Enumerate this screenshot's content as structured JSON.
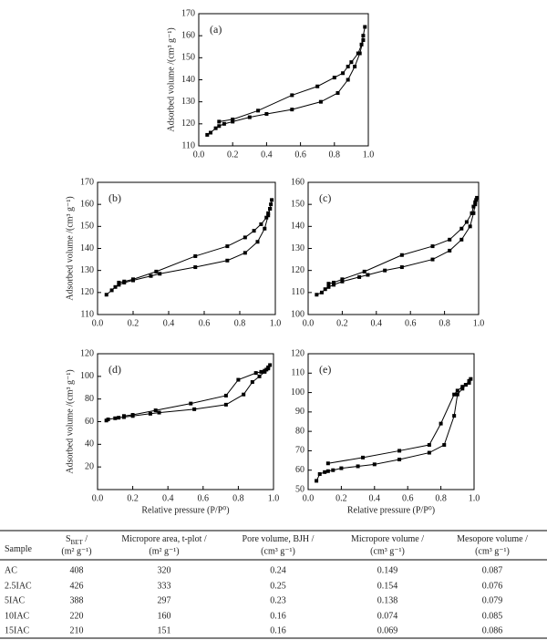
{
  "chart_data": [
    {
      "type": "line",
      "annotation": "(a)",
      "ylabel": "Adsorbed volume /(cm³ g⁻¹)",
      "marker": "square",
      "xlim": [
        0,
        1
      ],
      "xticks": [
        {
          "value": 0,
          "label": "0.0"
        },
        {
          "value": 0.2,
          "label": "0.2"
        },
        {
          "value": 0.4,
          "label": "0.4"
        },
        {
          "value": 0.6,
          "label": "0.6"
        },
        {
          "value": 0.8,
          "label": "0.8"
        },
        {
          "value": 1,
          "label": "1.0"
        }
      ],
      "ylim": [
        110,
        170
      ],
      "yticks": [
        110,
        120,
        130,
        140,
        150,
        160,
        170
      ],
      "series": [
        {
          "color": "#000000",
          "x": [
            0.05,
            0.07,
            0.1,
            0.12,
            0.15,
            0.2,
            0.3,
            0.4,
            0.55,
            0.72,
            0.82,
            0.88,
            0.92,
            0.95,
            0.97
          ],
          "values": [
            115,
            116,
            118,
            119,
            120,
            121,
            123,
            124.5,
            126.5,
            130,
            134,
            140,
            146,
            152,
            158
          ]
        },
        {
          "color": "#000000",
          "x": [
            0.98,
            0.97,
            0.96,
            0.94,
            0.9,
            0.88,
            0.85,
            0.8,
            0.7,
            0.55,
            0.35,
            0.2,
            0.12
          ],
          "values": [
            164,
            160,
            156,
            152,
            148,
            146,
            143,
            141,
            137,
            133,
            126,
            122,
            121
          ]
        }
      ]
    },
    {
      "type": "line",
      "annotation": "(b)",
      "ylabel": "Adsorbed volume /(cm³ g⁻¹)",
      "marker": "square",
      "xlim": [
        0,
        1
      ],
      "xticks": [
        {
          "value": 0,
          "label": "0.0"
        },
        {
          "value": 0.2,
          "label": "0.2"
        },
        {
          "value": 0.4,
          "label": "0.4"
        },
        {
          "value": 0.6,
          "label": "0.6"
        },
        {
          "value": 0.8,
          "label": "0.8"
        },
        {
          "value": 1,
          "label": "1.0"
        }
      ],
      "ylim": [
        110,
        170
      ],
      "yticks": [
        110,
        120,
        130,
        140,
        150,
        160,
        170
      ],
      "series": [
        {
          "color": "#000000",
          "x": [
            0.05,
            0.08,
            0.1,
            0.12,
            0.15,
            0.2,
            0.3,
            0.35,
            0.55,
            0.73,
            0.83,
            0.9,
            0.94,
            0.96,
            0.97
          ],
          "values": [
            119,
            121,
            122.5,
            123.5,
            124.5,
            125.5,
            127.5,
            128.5,
            131.5,
            134.5,
            138,
            143,
            149,
            155,
            158
          ]
        },
        {
          "color": "#000000",
          "x": [
            0.98,
            0.975,
            0.97,
            0.96,
            0.95,
            0.92,
            0.88,
            0.83,
            0.73,
            0.55,
            0.33,
            0.2,
            0.15,
            0.12
          ],
          "values": [
            162,
            160,
            158,
            156,
            154,
            151,
            148,
            145,
            141,
            136.5,
            129.5,
            126,
            125,
            124.5
          ]
        }
      ]
    },
    {
      "type": "line",
      "annotation": "(c)",
      "marker": "square",
      "xlim": [
        0,
        1
      ],
      "xticks": [
        {
          "value": 0,
          "label": "0.0"
        },
        {
          "value": 0.2,
          "label": "0.2"
        },
        {
          "value": 0.4,
          "label": "0.4"
        },
        {
          "value": 0.6,
          "label": "0.6"
        },
        {
          "value": 0.8,
          "label": "0.8"
        },
        {
          "value": 1,
          "label": "1.0"
        }
      ],
      "ylim": [
        100,
        160
      ],
      "yticks": [
        100,
        110,
        120,
        130,
        140,
        150,
        160
      ],
      "series": [
        {
          "color": "#000000",
          "x": [
            0.05,
            0.08,
            0.1,
            0.12,
            0.15,
            0.2,
            0.3,
            0.35,
            0.45,
            0.55,
            0.73,
            0.83,
            0.9,
            0.95,
            0.97,
            0.98
          ],
          "values": [
            109,
            110,
            111.5,
            112.5,
            113.5,
            115,
            117,
            118,
            120,
            121.5,
            125,
            129,
            134,
            140,
            146,
            150
          ]
        },
        {
          "color": "#000000",
          "x": [
            0.99,
            0.985,
            0.98,
            0.97,
            0.96,
            0.93,
            0.9,
            0.83,
            0.73,
            0.55,
            0.33,
            0.2,
            0.15,
            0.12
          ],
          "values": [
            153,
            152,
            151,
            149,
            146,
            142,
            139,
            134,
            131,
            127,
            119.5,
            116,
            114.5,
            114
          ]
        }
      ]
    },
    {
      "type": "line",
      "annotation": "(d)",
      "ylabel": "Adsorbed volume /(cm³ g⁻¹)",
      "xlabel": "Relative pressure (P/P⁰)",
      "marker": "square",
      "xlim": [
        0,
        1
      ],
      "xticks": [
        {
          "value": 0,
          "label": "0.0"
        },
        {
          "value": 0.2,
          "label": "0.2"
        },
        {
          "value": 0.4,
          "label": "0.4"
        },
        {
          "value": 0.6,
          "label": "0.6"
        },
        {
          "value": 0.8,
          "label": "0.8"
        },
        {
          "value": 1,
          "label": "1.0"
        }
      ],
      "ylim": [
        0,
        120
      ],
      "yticks": [
        20,
        40,
        60,
        80,
        100,
        120
      ],
      "series": [
        {
          "color": "#000000",
          "x": [
            0.05,
            0.06,
            0.1,
            0.12,
            0.15,
            0.2,
            0.3,
            0.35,
            0.55,
            0.73,
            0.83,
            0.88,
            0.92,
            0.95,
            0.97
          ],
          "values": [
            61,
            62,
            63,
            63.5,
            64,
            65,
            67,
            68,
            71,
            75,
            84,
            95,
            100,
            104,
            107
          ]
        },
        {
          "color": "#000000",
          "x": [
            0.98,
            0.97,
            0.96,
            0.95,
            0.93,
            0.9,
            0.8,
            0.73,
            0.53,
            0.33,
            0.2,
            0.15
          ],
          "values": [
            110,
            108,
            106,
            105,
            104,
            103,
            97,
            83,
            76,
            70,
            66,
            65
          ]
        }
      ]
    },
    {
      "type": "line",
      "annotation": "(e)",
      "xlabel": "Relative pressure (P/P⁰)",
      "marker": "square",
      "xlim": [
        0,
        1
      ],
      "xticks": [
        {
          "value": 0,
          "label": "0.0"
        },
        {
          "value": 0.2,
          "label": "0.2"
        },
        {
          "value": 0.4,
          "label": "0.4"
        },
        {
          "value": 0.6,
          "label": "0.6"
        },
        {
          "value": 0.8,
          "label": "0.8"
        },
        {
          "value": 1,
          "label": "1.0"
        }
      ],
      "ylim": [
        50,
        120
      ],
      "yticks": [
        50,
        60,
        70,
        80,
        90,
        100,
        110,
        120
      ],
      "series": [
        {
          "color": "#000000",
          "x": [
            0.05,
            0.07,
            0.1,
            0.12,
            0.15,
            0.2,
            0.3,
            0.4,
            0.55,
            0.73,
            0.82,
            0.88,
            0.9,
            0.93,
            0.95,
            0.97
          ],
          "values": [
            54.5,
            58,
            59,
            59.5,
            60,
            61,
            62,
            63,
            65.5,
            69,
            73,
            88,
            99,
            102,
            104,
            105
          ]
        },
        {
          "color": "#000000",
          "x": [
            0.98,
            0.97,
            0.95,
            0.93,
            0.9,
            0.88,
            0.8,
            0.73,
            0.55,
            0.33,
            0.12
          ],
          "values": [
            107,
            106,
            104,
            103,
            101,
            99,
            84,
            73,
            70,
            66.5,
            63.5
          ]
        }
      ]
    }
  ],
  "table": {
    "header": [
      {
        "text": "Sample"
      },
      {
        "text": "S",
        "sub": "BET",
        "after": " /",
        "unit": "(m² g⁻¹)"
      },
      {
        "text": "Micropore area, t-plot /",
        "unit": "(m² g⁻¹)"
      },
      {
        "text": "Pore volume, BJH /",
        "unit": "(cm³ g⁻¹)"
      },
      {
        "text": "Micropore volume /",
        "unit": "(cm³ g⁻¹)"
      },
      {
        "text": "Mesopore volume /",
        "unit": "(cm³ g⁻¹)"
      }
    ],
    "rows": [
      [
        "AC",
        "408",
        "320",
        "0.24",
        "0.149",
        "0.087"
      ],
      [
        "2.5IAC",
        "426",
        "333",
        "0.25",
        "0.154",
        "0.076"
      ],
      [
        "5IAC",
        "388",
        "297",
        "0.23",
        "0.138",
        "0.079"
      ],
      [
        "10IAC",
        "220",
        "160",
        "0.16",
        "0.074",
        "0.085"
      ],
      [
        "15IAC",
        "210",
        "151",
        "0.16",
        "0.069",
        "0.086"
      ]
    ]
  }
}
